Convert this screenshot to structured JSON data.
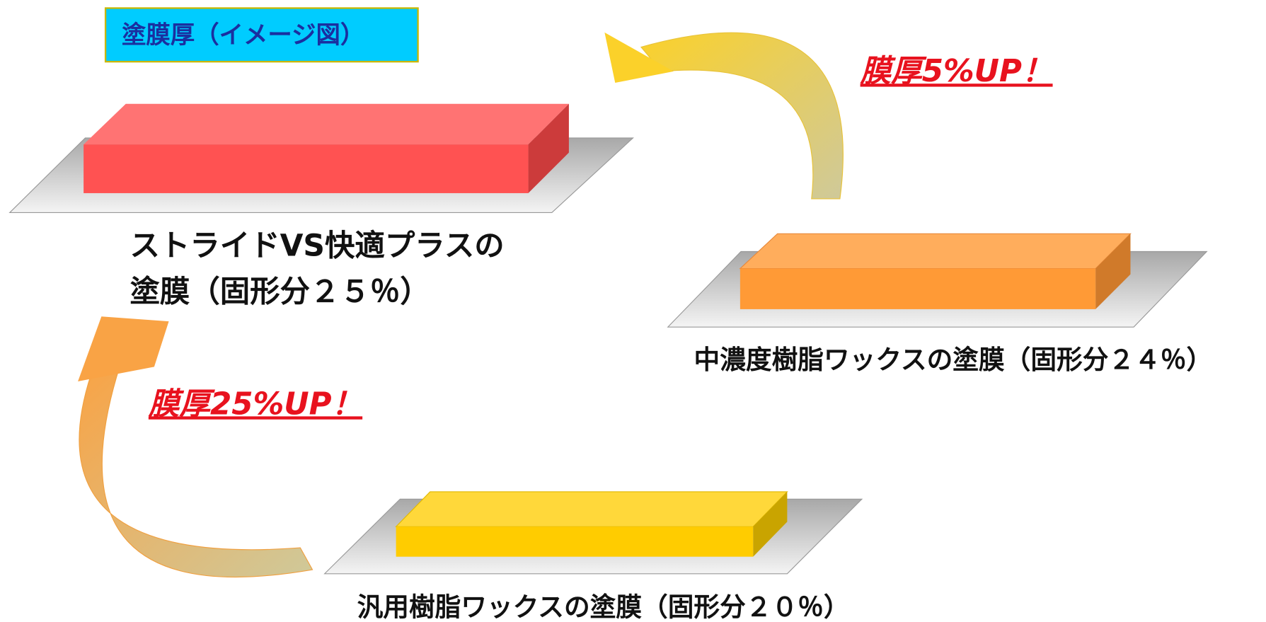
{
  "title": "塗膜厚（イメージ図）",
  "films": [
    {
      "label": [
        "ストライドVS快適プラスの",
        "塗膜（固形分２５％）"
      ]
    },
    {
      "label": [
        "中濃度樹脂ワックスの塗膜（固形分２４％）"
      ]
    },
    {
      "label": [
        "汎用樹脂ワックスの塗膜（固形分２０％）"
      ]
    }
  ],
  "callouts": [
    "膜厚5%UP！",
    "膜厚25%UP！"
  ]
}
